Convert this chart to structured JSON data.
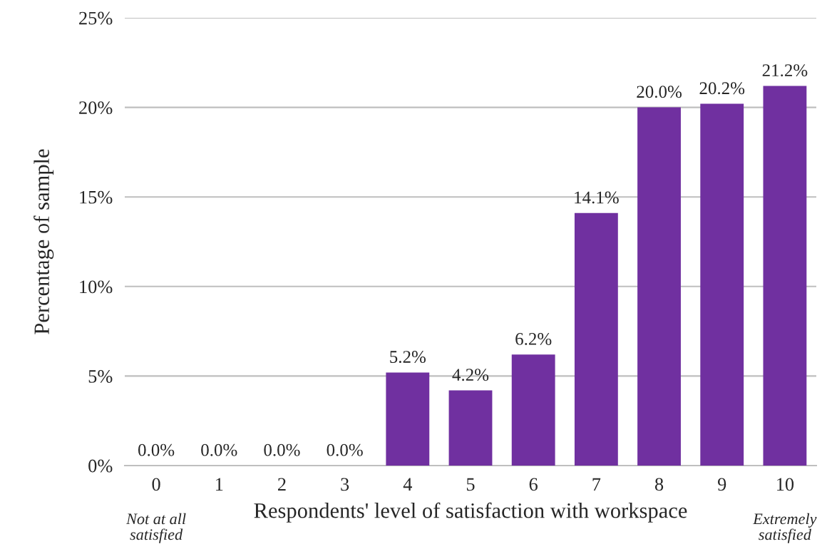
{
  "chart_data": {
    "type": "bar",
    "xlabel": "Respondents' level of satisfaction with workspace",
    "ylabel": "Percentage of sample",
    "categories": [
      "0",
      "1",
      "2",
      "3",
      "4",
      "5",
      "6",
      "7",
      "8",
      "9",
      "10"
    ],
    "values": [
      0.0,
      0.0,
      0.0,
      0.0,
      5.2,
      4.2,
      6.2,
      14.1,
      20.0,
      20.2,
      21.2
    ],
    "value_labels": [
      "0.0%",
      "0.0%",
      "0.0%",
      "0.0%",
      "5.2%",
      "4.2%",
      "6.2%",
      "14.1%",
      "20.0%",
      "20.2%",
      "21.2%"
    ],
    "color": "#7030a0",
    "ylim": [
      0,
      25
    ],
    "yticks": [
      {
        "value": 0,
        "label": "0%"
      },
      {
        "value": 5,
        "label": "5%"
      },
      {
        "value": 10,
        "label": "10%"
      },
      {
        "value": 15,
        "label": "15%"
      },
      {
        "value": 20,
        "label": "20%"
      },
      {
        "value": 25,
        "label": "25%"
      }
    ],
    "grid": "y",
    "annotations": [
      "Not at all\nsatisfied",
      "Extremely\nsatisfied"
    ]
  }
}
